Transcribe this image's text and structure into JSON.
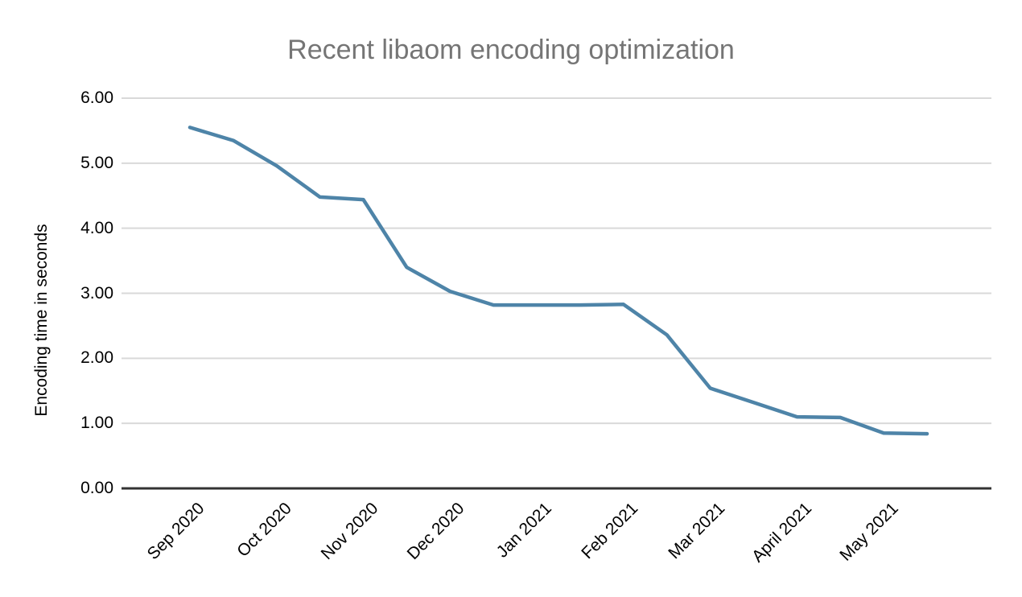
{
  "chart": {
    "title": "Recent libaom encoding optimization",
    "ylabel": "Encoding time in seconds"
  },
  "chart_data": {
    "type": "line",
    "title": "Recent libaom encoding optimization",
    "xlabel": "",
    "ylabel": "Encoding time in seconds",
    "categories": [
      "Sep 2020",
      "",
      "Oct 2020",
      "",
      "Nov 2020",
      "",
      "Dec 2020",
      "",
      "Jan 2021",
      "",
      "Feb 2021",
      "",
      "Mar 2021",
      "",
      "April 2021",
      "",
      "May 2021",
      ""
    ],
    "x_tick_labels": [
      "Sep 2020",
      "Oct 2020",
      "Nov 2020",
      "Dec 2020",
      "Jan 2021",
      "Feb 2021",
      "Mar 2021",
      "April 2021",
      "May 2021"
    ],
    "series": [
      {
        "values": [
          5.55,
          5.35,
          4.96,
          4.48,
          4.44,
          3.4,
          3.03,
          2.82,
          2.82,
          2.82,
          2.83,
          2.36,
          1.54,
          1.32,
          1.1,
          1.09,
          0.85,
          0.84
        ]
      }
    ],
    "y_tick_labels": [
      "0.00",
      "1.00",
      "2.00",
      "3.00",
      "4.00",
      "5.00",
      "6.00"
    ],
    "ylim": [
      0,
      6
    ],
    "grid": "horizontal",
    "legend": "none",
    "colors": {
      "line": "#4e84a8",
      "gridline": "#d9d9d9",
      "axis": "#333333",
      "title_text": "#757575",
      "tick_text": "#000000"
    }
  }
}
